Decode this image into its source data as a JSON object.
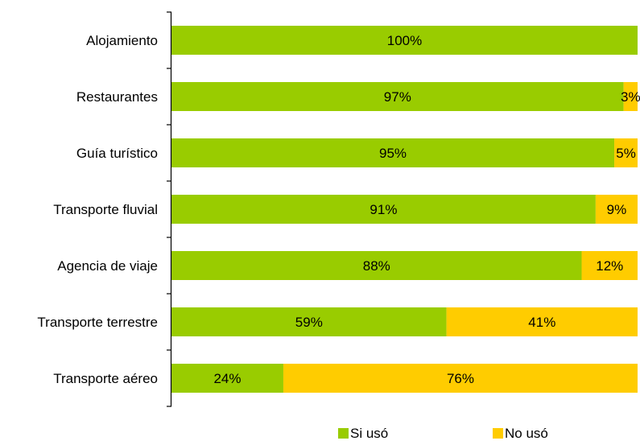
{
  "chart_data": {
    "type": "bar",
    "orientation": "horizontal",
    "stacked": true,
    "percent_stacked": true,
    "categories": [
      "Alojamiento",
      "Restaurantes",
      "Guía turístico",
      "Transporte fluvial",
      "Agencia de viaje",
      "Transporte terrestre",
      "Transporte aéreo"
    ],
    "series": [
      {
        "name": "Si usó",
        "color": "#99cc00",
        "values": [
          100,
          97,
          95,
          91,
          88,
          59,
          24
        ]
      },
      {
        "name": "No usó",
        "color": "#ffcc00",
        "values": [
          0,
          3,
          5,
          9,
          12,
          41,
          76
        ]
      }
    ],
    "value_suffix": "%",
    "xlim": [
      0,
      100
    ],
    "grid": false,
    "legend_position": "bottom"
  }
}
